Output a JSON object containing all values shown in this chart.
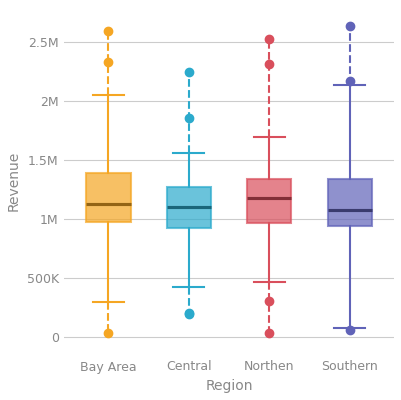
{
  "regions": [
    "Bay Area",
    "Central",
    "Northen",
    "Southern"
  ],
  "colors": [
    "#F5A623",
    "#2BAACC",
    "#D94F5C",
    "#6063B8"
  ],
  "xlabel": "Region",
  "ylabel": "Revenue",
  "ylim": [
    -150000,
    2800000
  ],
  "yticks": [
    0,
    500000,
    1000000,
    1500000,
    2000000,
    2500000
  ],
  "ytick_labels": [
    "0",
    "500K",
    "1M",
    "1.5M",
    "2M",
    "2.5M"
  ],
  "box_data": {
    "Bay Area": {
      "q1": 975000,
      "median": 1130000,
      "q3": 1390000,
      "whisker_low": 300000,
      "whisker_high": 2050000,
      "outliers_low": [
        35000
      ],
      "outliers_high": [
        2330000,
        2600000
      ]
    },
    "Central": {
      "q1": 930000,
      "median": 1100000,
      "q3": 1270000,
      "whisker_low": 430000,
      "whisker_high": 1560000,
      "outliers_low": [
        195000,
        205000
      ],
      "outliers_high": [
        1860000,
        2250000
      ]
    },
    "Northen": {
      "q1": 970000,
      "median": 1180000,
      "q3": 1340000,
      "whisker_low": 470000,
      "whisker_high": 1700000,
      "outliers_low": [
        35000,
        310000
      ],
      "outliers_high": [
        2320000,
        2530000
      ]
    },
    "Southern": {
      "q1": 940000,
      "median": 1080000,
      "q3": 1340000,
      "whisker_low": 75000,
      "whisker_high": 2140000,
      "outliers_low": [
        65000
      ],
      "outliers_high": [
        2170000,
        2640000
      ]
    }
  },
  "background_color": "#ffffff",
  "grid_color": "#cccccc",
  "box_width": 0.55,
  "linewidth": 1.5,
  "marker_size": 6
}
